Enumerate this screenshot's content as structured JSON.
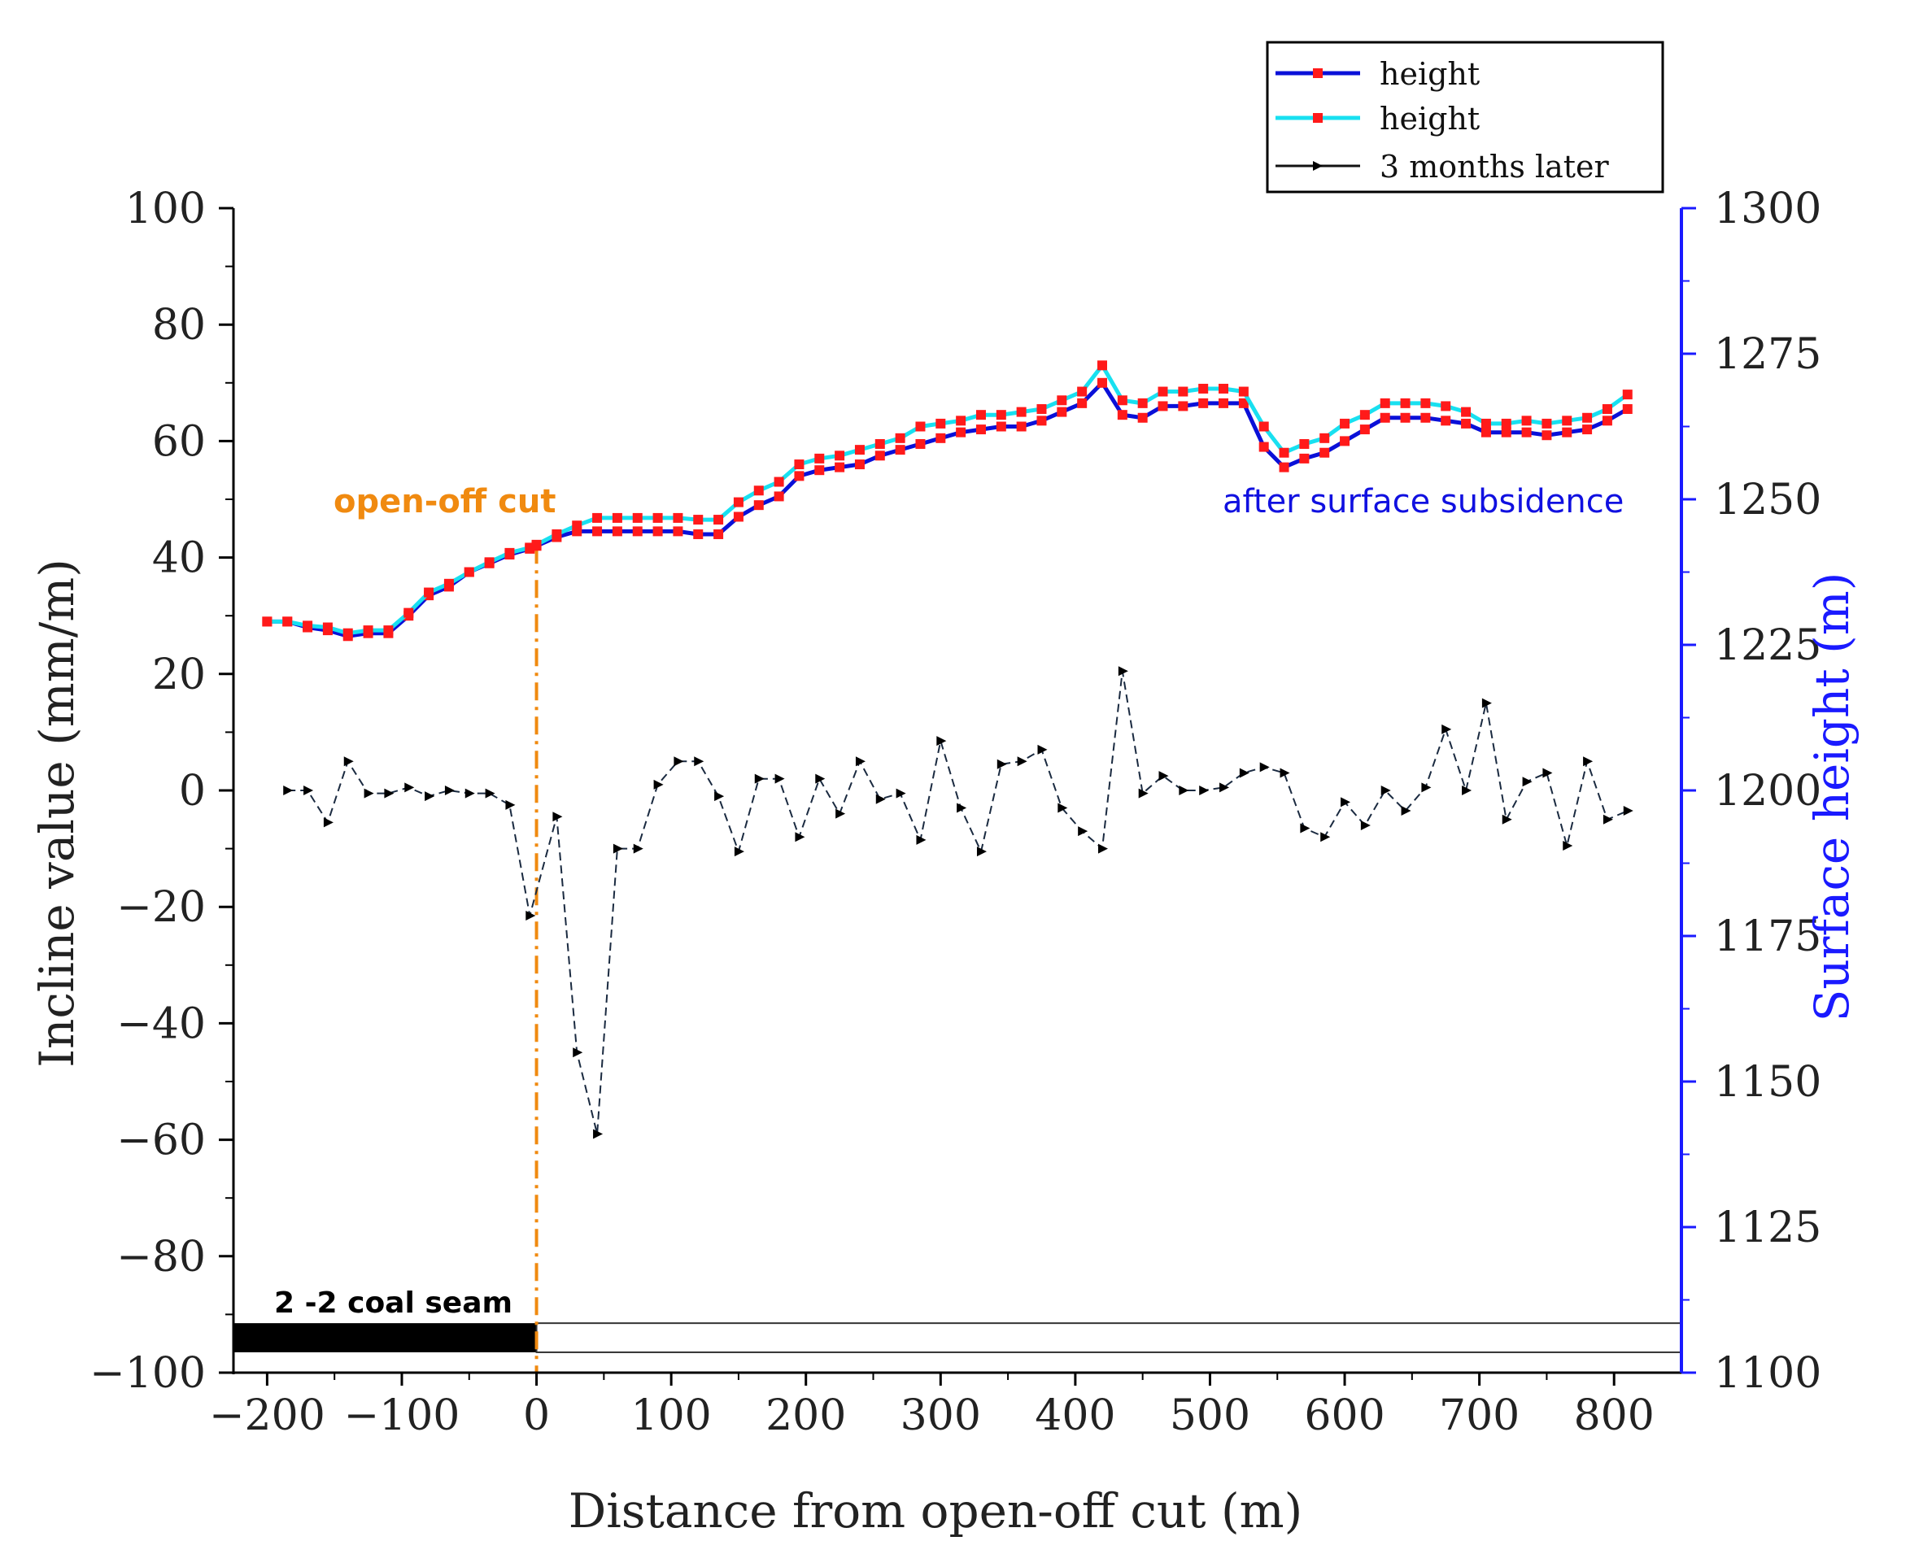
{
  "chart_data": {
    "type": "line",
    "xlabel": "Distance from open-off cut (m)",
    "ylabel_left": "Incline value (mm/m)",
    "ylabel_right": "Surface height (m)",
    "xlim": [
      -225,
      850
    ],
    "ylim_left": [
      -100,
      100
    ],
    "ylim_right": [
      1100,
      1300
    ],
    "x_ticks": [
      "-200",
      "-100",
      "0",
      "100",
      "200",
      "300",
      "400",
      "500",
      "600",
      "700",
      "800"
    ],
    "y_left_ticks": [
      "100",
      "80",
      "60",
      "40",
      "20",
      "0",
      "-20",
      "-40",
      "-60",
      "-80",
      "-100"
    ],
    "y_right_ticks": [
      "1300",
      "1275",
      "1250",
      "1225",
      "1200",
      "1175",
      "1150",
      "1125",
      "1100"
    ],
    "legend": [
      "height",
      "height",
      "3 months later"
    ],
    "annotations": {
      "open_off_cut": "open-off cut",
      "after_subsidence": "after surface subsidence",
      "coal_seam": "2 -2 coal seam"
    },
    "series": [
      {
        "name": "height",
        "axis": "right",
        "line_color": "#0a10d8",
        "marker_color": "#ff1a1a",
        "x": [
          -200,
          -185,
          -170,
          -155,
          -140,
          -125,
          -110,
          -95,
          -80,
          -65,
          -50,
          -35,
          -20,
          -5,
          0,
          15,
          30,
          45,
          60,
          75,
          90,
          105,
          120,
          135,
          150,
          165,
          180,
          195,
          210,
          225,
          240,
          255,
          270,
          285,
          300,
          315,
          330,
          345,
          360,
          375,
          390,
          405,
          420,
          435,
          450,
          465,
          480,
          495,
          510,
          525,
          540,
          555,
          570,
          585,
          600,
          615,
          630,
          645,
          660,
          675,
          690,
          705,
          720,
          735,
          750,
          765,
          780,
          795,
          810
        ],
        "values": [
          1229,
          1229,
          1228,
          1227.5,
          1226.5,
          1227,
          1227,
          1230,
          1233.5,
          1235,
          1237.5,
          1239,
          1240.5,
          1241.5,
          1242,
          1243.5,
          1244.5,
          1244.5,
          1244.5,
          1244.5,
          1244.5,
          1244.5,
          1244,
          1244,
          1247,
          1249,
          1250.5,
          1254,
          1255,
          1255.5,
          1256,
          1257.5,
          1258.5,
          1259.5,
          1260.5,
          1261.5,
          1262,
          1262.5,
          1262.5,
          1263.5,
          1265,
          1266.5,
          1270,
          1264.5,
          1264,
          1266,
          1266,
          1266.5,
          1266.5,
          1266.5,
          1259,
          1255.5,
          1257,
          1258,
          1260,
          1262,
          1264,
          1264,
          1264,
          1263.5,
          1263,
          1261.5,
          1261.5,
          1261.5,
          1261,
          1261.5,
          1262,
          1263.5,
          1265.5
        ]
      },
      {
        "name": "height",
        "axis": "right",
        "line_color": "#18e0f0",
        "marker_color": "#ff1a1a",
        "x": [
          -200,
          -185,
          -170,
          -155,
          -140,
          -125,
          -110,
          -95,
          -80,
          -65,
          -50,
          -35,
          -20,
          -5,
          0,
          15,
          30,
          45,
          60,
          75,
          90,
          105,
          120,
          135,
          150,
          165,
          180,
          195,
          210,
          225,
          240,
          255,
          270,
          285,
          300,
          315,
          330,
          345,
          360,
          375,
          390,
          405,
          420,
          435,
          450,
          465,
          480,
          495,
          510,
          525,
          540,
          555,
          570,
          585,
          600,
          615,
          630,
          645,
          660,
          675,
          690,
          705,
          720,
          735,
          750,
          765,
          780,
          795,
          810
        ],
        "values": [
          1229,
          1229,
          1228.3,
          1228,
          1227,
          1227.5,
          1227.5,
          1230.5,
          1234,
          1235.5,
          1237.5,
          1239.2,
          1240.8,
          1241.7,
          1242.2,
          1244,
          1245.5,
          1246.8,
          1246.8,
          1246.8,
          1246.8,
          1246.8,
          1246.5,
          1246.5,
          1249.5,
          1251.5,
          1253,
          1256,
          1257,
          1257.5,
          1258.5,
          1259.5,
          1260.5,
          1262.5,
          1263,
          1263.5,
          1264.5,
          1264.5,
          1265,
          1265.5,
          1267,
          1268.5,
          1273,
          1267,
          1266.5,
          1268.5,
          1268.5,
          1269,
          1269,
          1268.5,
          1262.5,
          1258,
          1259.5,
          1260.5,
          1263,
          1264.5,
          1266.5,
          1266.5,
          1266.5,
          1266,
          1265,
          1263,
          1263,
          1263.5,
          1263,
          1263.5,
          1264,
          1265.5,
          1268
        ]
      },
      {
        "name": "3 months later",
        "axis": "left",
        "line_color": "#1a2a40",
        "marker_color": "#000000",
        "x": [
          -185,
          -170,
          -155,
          -140,
          -125,
          -110,
          -95,
          -80,
          -65,
          -50,
          -35,
          -20,
          -5,
          15,
          30,
          45,
          60,
          75,
          90,
          105,
          120,
          135,
          150,
          165,
          180,
          195,
          210,
          225,
          240,
          255,
          270,
          285,
          300,
          315,
          330,
          345,
          360,
          375,
          390,
          405,
          420,
          435,
          450,
          465,
          480,
          495,
          510,
          525,
          540,
          555,
          570,
          585,
          600,
          615,
          630,
          645,
          660,
          675,
          690,
          705,
          720,
          735,
          750,
          765,
          780,
          795,
          810
        ],
        "values": [
          0,
          0,
          -5.5,
          5,
          -0.5,
          -0.5,
          0.5,
          -1,
          0,
          -0.5,
          -0.5,
          -2.5,
          -21.5,
          -4.5,
          -45,
          -59,
          -10,
          -10,
          1,
          5,
          5,
          -1,
          -10.5,
          2,
          2,
          -8,
          2,
          -4,
          5,
          -1.5,
          -0.5,
          -8.5,
          8.5,
          -3,
          -10.5,
          4.5,
          5,
          7,
          -3,
          -7,
          -10,
          20.5,
          -0.5,
          2.5,
          0,
          0,
          0.5,
          3,
          4,
          3,
          -6.5,
          -8,
          -2,
          -6,
          0,
          -3.5,
          0.5,
          10.5,
          0,
          15,
          -5,
          1.5,
          3,
          -9.5,
          5,
          -5,
          -3.5
        ]
      }
    ]
  }
}
